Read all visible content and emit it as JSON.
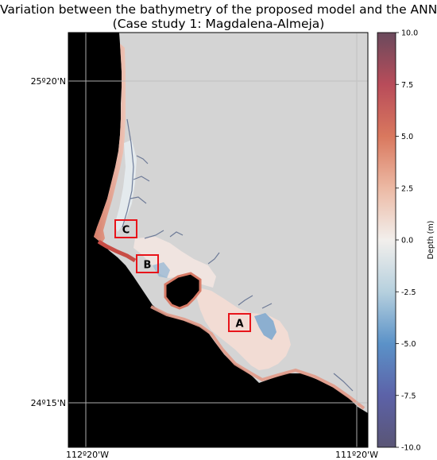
{
  "title": {
    "line1": "Variation between the bathymetry of the proposed model and the ANN.",
    "line2": "(Case study 1: Magdalena-Almeja)"
  },
  "axes": {
    "x_ticks": [
      "112º20'W",
      "111º20'W"
    ],
    "y_ticks": [
      "25º20'N",
      "24º15'N"
    ],
    "grid": true
  },
  "colorbar": {
    "label": "Depth (m)",
    "ticks": [
      "10.0",
      "7.5",
      "5.0",
      "2.5",
      "0.0",
      "-2.5",
      "-5.0",
      "-7.5",
      "-10.0"
    ],
    "range": [
      -10,
      10
    ],
    "colormap": [
      "#6a4a5c",
      "#b84c5a",
      "#d9785e",
      "#ecb9a4",
      "#f2efec",
      "#b6d0de",
      "#5b92c8",
      "#5c62a8",
      "#5a5575"
    ]
  },
  "map_colors": {
    "ocean": "#000000",
    "land": "#d4d4d4",
    "box": "#e8141a"
  },
  "regions": [
    {
      "label": "A"
    },
    {
      "label": "B"
    },
    {
      "label": "C"
    }
  ]
}
